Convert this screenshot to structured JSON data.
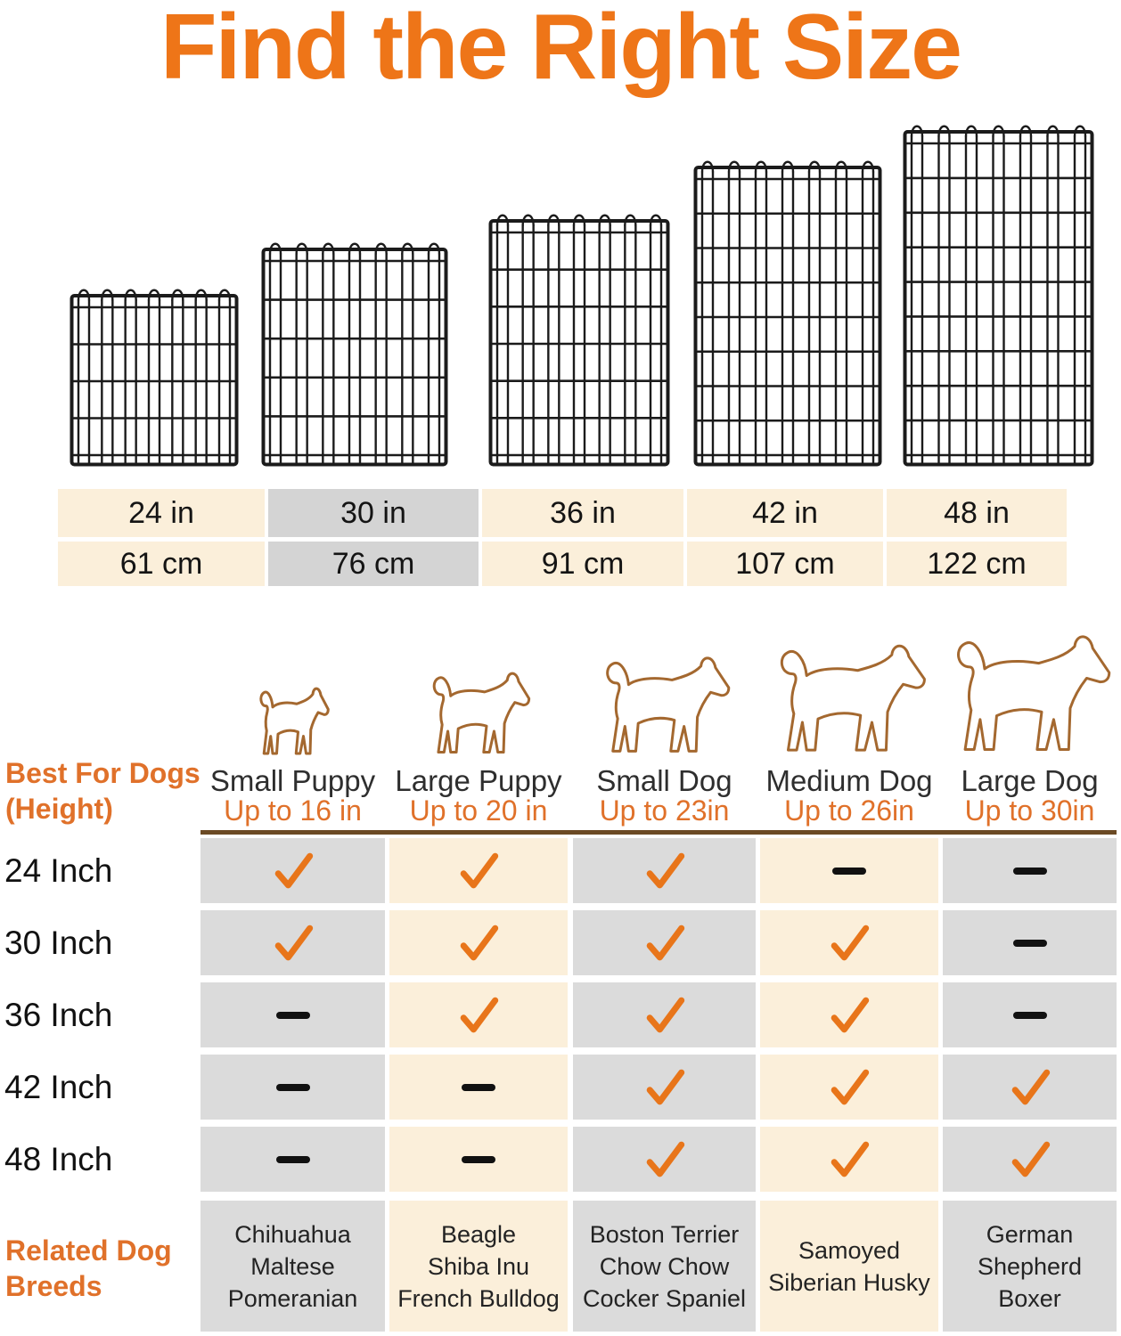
{
  "title": "Find the Right Size",
  "palette": {
    "title_orange": "#EE7518",
    "accent_orange": "#E0712A",
    "check_orange": "#E8751A",
    "dog_outline_brown": "#A4682F",
    "divider_brown": "#6B4A24",
    "cell_gray": "#DBDBDB",
    "cell_gray_dark": "#D4D4D4",
    "cell_cream": "#FBEFDA",
    "wire_black": "#1B1B1B"
  },
  "panels": {
    "description": "five black wire crate panels of increasing height",
    "sizes_in": [
      24,
      30,
      36,
      42,
      48
    ]
  },
  "size_table": {
    "columns": [
      {
        "inches": "24 in",
        "cm": "61 cm",
        "highlighted": false
      },
      {
        "inches": "30 in",
        "cm": "76 cm",
        "highlighted": true
      },
      {
        "inches": "36 in",
        "cm": "91 cm",
        "highlighted": false
      },
      {
        "inches": "42 in",
        "cm": "107 cm",
        "highlighted": false
      },
      {
        "inches": "48 in",
        "cm": "122 cm",
        "highlighted": false
      }
    ]
  },
  "fit_table": {
    "row_group_title_lines": [
      "Best For Dogs",
      "(Height)"
    ],
    "columns": [
      {
        "name": "Small Puppy",
        "height": "Up to 16 in",
        "dog": "chihuahua-silhouette"
      },
      {
        "name": "Large Puppy",
        "height": "Up to 20 in",
        "dog": "large-puppy-silhouette"
      },
      {
        "name": "Small Dog",
        "height": "Up to 23in",
        "dog": "small-dog-silhouette"
      },
      {
        "name": "Medium Dog",
        "height": "Up to 26in",
        "dog": "medium-dog-silhouette"
      },
      {
        "name": "Large Dog",
        "height": "Up to 30in",
        "dog": "large-dog-silhouette"
      }
    ],
    "rows": [
      {
        "label": "24 Inch",
        "cells": [
          "check",
          "check",
          "check",
          "dash",
          "dash"
        ]
      },
      {
        "label": "30 Inch",
        "cells": [
          "check",
          "check",
          "check",
          "check",
          "dash"
        ]
      },
      {
        "label": "36 Inch",
        "cells": [
          "dash",
          "check",
          "check",
          "check",
          "dash"
        ]
      },
      {
        "label": "42 Inch",
        "cells": [
          "dash",
          "dash",
          "check",
          "check",
          "check"
        ]
      },
      {
        "label": "48 Inch",
        "cells": [
          "dash",
          "dash",
          "check",
          "check",
          "check"
        ]
      }
    ],
    "breeds_group_title_lines": [
      "Related Dog",
      "Breeds"
    ],
    "breeds": [
      [
        "Chihuahua",
        "Maltese",
        "Pomeranian"
      ],
      [
        "Beagle",
        "Shiba Inu",
        "French Bulldog"
      ],
      [
        "Boston Terrier",
        "Chow Chow",
        "Cocker Spaniel"
      ],
      [
        "Samoyed",
        "Siberian Husky"
      ],
      [
        "German",
        "Shepherd",
        "Boxer"
      ]
    ]
  }
}
